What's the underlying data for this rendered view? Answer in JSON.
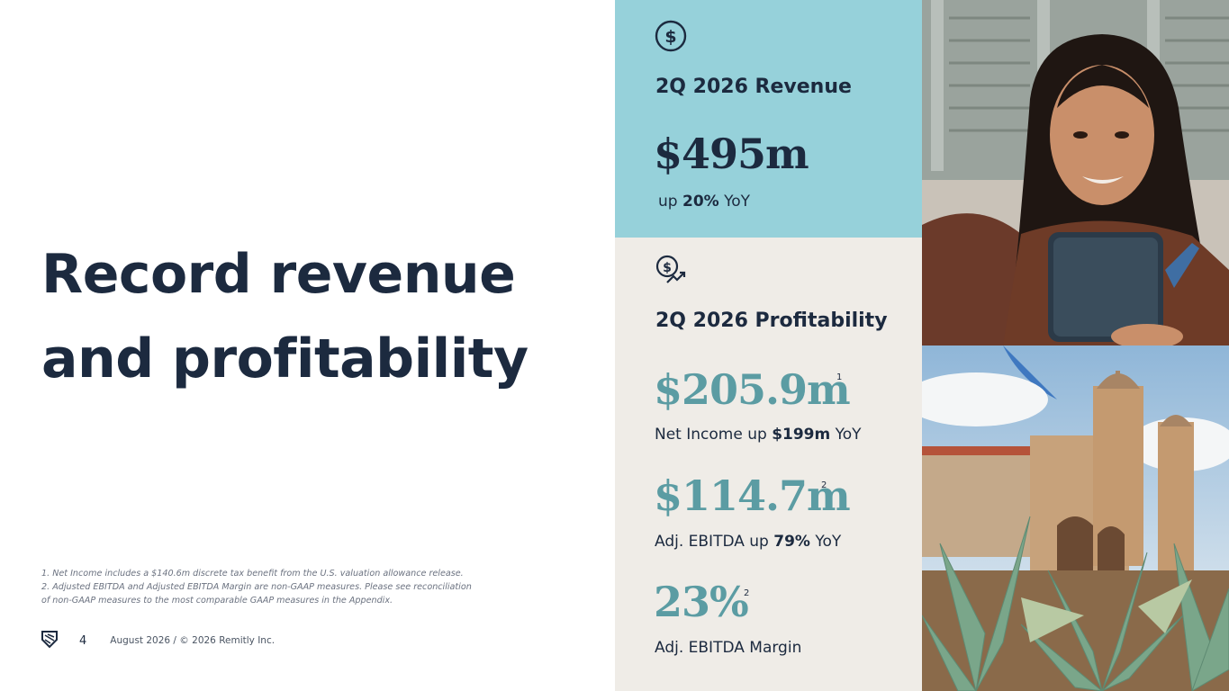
{
  "headline": {
    "line1": "Record revenue",
    "line2": "and profitability"
  },
  "footnotes": {
    "note1": "1. Net Income includes a $140.6m discrete tax benefit from the U.S. valuation allowance release.",
    "note2": "2. Adjusted EBITDA and Adjusted EBITDA Margin are non-GAAP measures. Please see reconciliation\nof non-GAAP measures to the most comparable GAAP measures in the Appendix."
  },
  "footer": {
    "page_number": "4",
    "copyright": "August 2026 / © 2026 Remitly Inc."
  },
  "revenue": {
    "icon": "dollar-circle-icon",
    "title": "2Q 2026 Revenue",
    "value": "$495m",
    "sub_prefix": "up ",
    "sub_bold": "20%",
    "sub_suffix": " YoY"
  },
  "profitability": {
    "icon": "dollar-trend-icon",
    "title": "2Q 2026 Profitability",
    "net_income": {
      "value": "$205.9m",
      "sup": "1",
      "sub_prefix": "Net Income up ",
      "sub_bold": "$199m",
      "sub_suffix": " YoY"
    },
    "adj_ebitda": {
      "value": "$114.7m",
      "sup": "2",
      "sub_prefix": "Adj. EBITDA up ",
      "sub_bold": "79%",
      "sub_suffix": " YoY"
    },
    "margin": {
      "value": "23%",
      "sup": "2",
      "sub": "Adj. EBITDA Margin"
    }
  },
  "colors": {
    "navy": "#1c2a3f",
    "teal": "#5b9ca3",
    "revenue_bg": "#96d1da",
    "profit_bg": "#efece7"
  }
}
